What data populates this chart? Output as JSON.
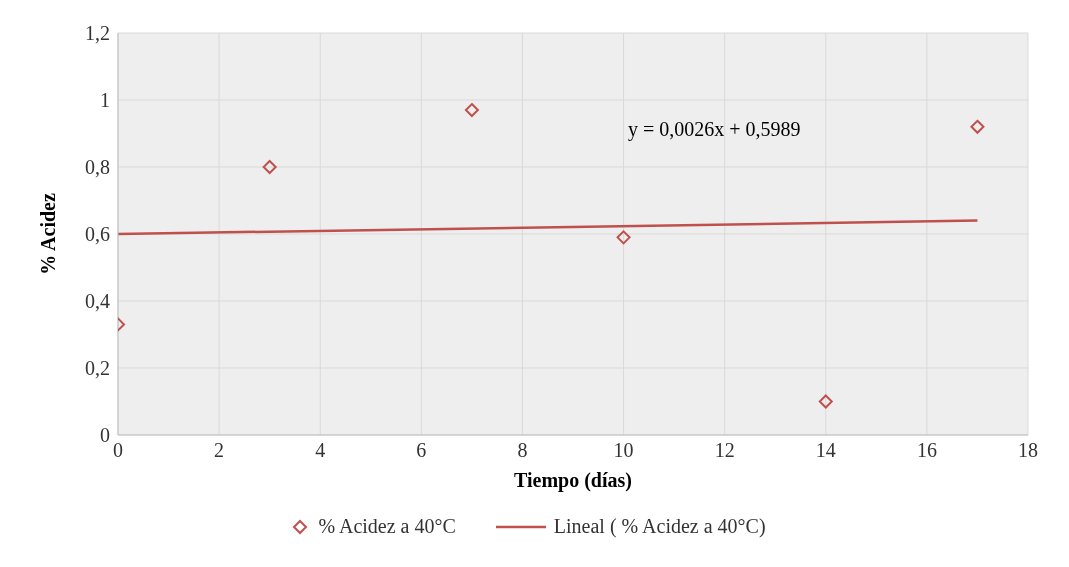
{
  "chart_data": {
    "type": "scatter",
    "xlabel": "Tiempo (días)",
    "ylabel": "% Acidez",
    "xlim": [
      0,
      18
    ],
    "xticks": [
      0,
      2,
      4,
      6,
      8,
      10,
      12,
      14,
      16,
      18
    ],
    "ylim": [
      0,
      1.2
    ],
    "yticks": [
      0,
      {
        "value": 0.2,
        "label": "0,2"
      },
      {
        "value": 0.4,
        "label": "0,4"
      },
      {
        "value": 0.6,
        "label": "0,6"
      },
      {
        "value": 0.8,
        "label": "0,8"
      },
      1,
      {
        "value": 1.2,
        "label": "1,2"
      }
    ],
    "grid": true,
    "legend": "bottom",
    "annotations": [
      "y = 0,0026x + 0,5989"
    ],
    "series": [
      {
        "name": "% Acidez a 40°C",
        "marker": "diamond",
        "color": "#c0504d",
        "x": [
          0,
          3,
          7,
          10,
          14,
          17
        ],
        "values": [
          0.33,
          0.8,
          0.97,
          0.59,
          0.1,
          0.92
        ]
      },
      {
        "name": "Lineal ( % Acidez a 40°C)",
        "type": "line",
        "marker": "none",
        "color": "#c0504d",
        "x": [
          0,
          17
        ],
        "values": [
          0.6,
          0.64
        ]
      }
    ]
  }
}
